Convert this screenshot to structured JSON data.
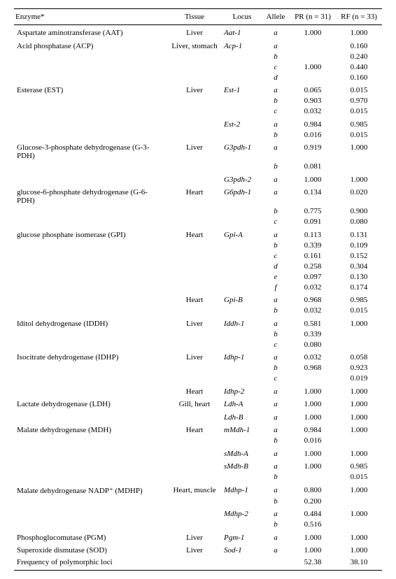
{
  "header": {
    "enzyme": "Enzyme*",
    "tissue": "Tissue",
    "locus": "Locus",
    "allele": "Allele",
    "pr": "PR (n = 31)",
    "rf": "RF (n = 33)"
  },
  "rows": [
    {
      "enzyme": "Aspartate aminotransferase (AAT)",
      "tissue": "Liver",
      "locus": "Aat-1",
      "allele": "a",
      "pr": "1.000",
      "rf": "1.000",
      "section": true
    },
    {
      "enzyme": "Acid phosphatase (ACP)",
      "tissue": "Liver, stomach",
      "locus": "Acp-1",
      "allele": "a",
      "pr": "",
      "rf": "0.160",
      "section": true
    },
    {
      "enzyme": "",
      "tissue": "",
      "locus": "",
      "allele": "b",
      "pr": "",
      "rf": "0.240"
    },
    {
      "enzyme": "",
      "tissue": "",
      "locus": "",
      "allele": "c",
      "pr": "1.000",
      "rf": "0.440"
    },
    {
      "enzyme": "",
      "tissue": "",
      "locus": "",
      "allele": "d",
      "pr": "",
      "rf": "0.160"
    },
    {
      "enzyme": "Esterase (EST)",
      "tissue": "Liver",
      "locus": "Est-1",
      "allele": "a",
      "pr": "0.065",
      "rf": "0.015",
      "section": true
    },
    {
      "enzyme": "",
      "tissue": "",
      "locus": "",
      "allele": "b",
      "pr": "0.903",
      "rf": "0.970"
    },
    {
      "enzyme": "",
      "tissue": "",
      "locus": "",
      "allele": "c",
      "pr": "0.032",
      "rf": "0.015"
    },
    {
      "enzyme": "",
      "tissue": "",
      "locus": "Est-2",
      "allele": "a",
      "pr": "0.984",
      "rf": "0.985",
      "section": true
    },
    {
      "enzyme": "",
      "tissue": "",
      "locus": "",
      "allele": "b",
      "pr": "0.016",
      "rf": "0.015"
    },
    {
      "enzyme": "Glucose-3-phosphate dehydrogenase (G-3-PDH)",
      "tissue": "Liver",
      "locus": "G3pdh-1",
      "allele": "a",
      "pr": "0.919",
      "rf": "1.000",
      "section": true
    },
    {
      "enzyme": "",
      "tissue": "",
      "locus": "",
      "allele": "b",
      "pr": "0.081",
      "rf": ""
    },
    {
      "enzyme": "",
      "tissue": "",
      "locus": "G3pdh-2",
      "allele": "a",
      "pr": "1.000",
      "rf": "1.000",
      "section": true
    },
    {
      "enzyme": "glucose-6-phosphate dehydrogenase (G-6-PDH)",
      "tissue": "Heart",
      "locus": "G6pdh-1",
      "allele": "a",
      "pr": "0.134",
      "rf": "0.020",
      "section": true
    },
    {
      "enzyme": "",
      "tissue": "",
      "locus": "",
      "allele": "b",
      "pr": "0.775",
      "rf": "0.900"
    },
    {
      "enzyme": "",
      "tissue": "",
      "locus": "",
      "allele": "c",
      "pr": "0.091",
      "rf": "0.080"
    },
    {
      "enzyme": "glucose phosphate isomerase (GPI)",
      "tissue": "Heart",
      "locus": "Gpi-A",
      "allele": "a",
      "pr": "0.113",
      "rf": "0.131",
      "section": true
    },
    {
      "enzyme": "",
      "tissue": "",
      "locus": "",
      "allele": "b",
      "pr": "0.339",
      "rf": "0.109"
    },
    {
      "enzyme": "",
      "tissue": "",
      "locus": "",
      "allele": "c",
      "pr": "0.161",
      "rf": "0.152"
    },
    {
      "enzyme": "",
      "tissue": "",
      "locus": "",
      "allele": "d",
      "pr": "0.258",
      "rf": "0.304"
    },
    {
      "enzyme": "",
      "tissue": "",
      "locus": "",
      "allele": "e",
      "pr": "0.097",
      "rf": "0.130"
    },
    {
      "enzyme": "",
      "tissue": "",
      "locus": "",
      "allele": "f",
      "pr": "0.032",
      "rf": "0.174"
    },
    {
      "enzyme": "",
      "tissue": "Heart",
      "locus": "Gpi-B",
      "allele": "a",
      "pr": "0.968",
      "rf": "0.985",
      "section": true
    },
    {
      "enzyme": "",
      "tissue": "",
      "locus": "",
      "allele": "b",
      "pr": "0.032",
      "rf": "0.015"
    },
    {
      "enzyme": "Iditol dehydrogenase (IDDH)",
      "tissue": "Liver",
      "locus": "Iddh-1",
      "allele": "a",
      "pr": "0.581",
      "rf": "1.000",
      "section": true
    },
    {
      "enzyme": "",
      "tissue": "",
      "locus": "",
      "allele": "b",
      "pr": "0.339",
      "rf": ""
    },
    {
      "enzyme": "",
      "tissue": "",
      "locus": "",
      "allele": "c",
      "pr": "0.080",
      "rf": ""
    },
    {
      "enzyme": "Isocitrate dehydrogenase (IDHP)",
      "tissue": "Liver",
      "locus": "Idhp-1",
      "allele": "a",
      "pr": "0.032",
      "rf": "0.058",
      "section": true
    },
    {
      "enzyme": "",
      "tissue": "",
      "locus": "",
      "allele": "b",
      "pr": "0.968",
      "rf": "0.923"
    },
    {
      "enzyme": "",
      "tissue": "",
      "locus": "",
      "allele": "c",
      "pr": "",
      "rf": "0.019"
    },
    {
      "enzyme": "",
      "tissue": "Heart",
      "locus": "Idhp-2",
      "allele": "a",
      "pr": "1.000",
      "rf": "1.000",
      "section": true
    },
    {
      "enzyme": "Lactate dehydrogenase (LDH)",
      "tissue": "Gill, heart",
      "locus": "Ldh-A",
      "allele": "a",
      "pr": "1.000",
      "rf": "1.000",
      "section": true
    },
    {
      "enzyme": "",
      "tissue": "",
      "locus": "Ldh-B",
      "allele": "a",
      "pr": "1.000",
      "rf": "1.000",
      "section": true
    },
    {
      "enzyme": "Malate dehydrogenase (MDH)",
      "tissue": "Heart",
      "locus": "mMdh-1",
      "allele": "a",
      "pr": "0.984",
      "rf": "1.000",
      "section": true
    },
    {
      "enzyme": "",
      "tissue": "",
      "locus": "",
      "allele": "b",
      "pr": "0.016",
      "rf": ""
    },
    {
      "enzyme": "",
      "tissue": "",
      "locus": "sMdh-A",
      "allele": "a",
      "pr": "1.000",
      "rf": "1.000",
      "section": true
    },
    {
      "enzyme": "",
      "tissue": "",
      "locus": "sMdh-B",
      "allele": "a",
      "pr": "1.000",
      "rf": "0.985",
      "section": true
    },
    {
      "enzyme": "",
      "tissue": "",
      "locus": "",
      "allele": "b",
      "pr": "",
      "rf": "0.015"
    },
    {
      "enzyme": "Malate dehydrogenase NADP⁺ (MDHP)",
      "tissue": "Heart, muscle",
      "locus": "Mdhp-1",
      "allele": "a",
      "pr": "0.800",
      "rf": "1.000",
      "section": true
    },
    {
      "enzyme": "",
      "tissue": "",
      "locus": "",
      "allele": "b",
      "pr": "0.200",
      "rf": ""
    },
    {
      "enzyme": "",
      "tissue": "",
      "locus": "Mdhp-2",
      "allele": "a",
      "pr": "0.484",
      "rf": "1.000",
      "section": true
    },
    {
      "enzyme": "",
      "tissue": "",
      "locus": "",
      "allele": "b",
      "pr": "0.516",
      "rf": ""
    },
    {
      "enzyme": "Phosphoglucomutase (PGM)",
      "tissue": "Liver",
      "locus": "Pgm-1",
      "allele": "a",
      "pr": "1.000",
      "rf": "1.000",
      "section": true
    },
    {
      "enzyme": "Superoxide dismutase (SOD)",
      "tissue": "Liver",
      "locus": "Sod-1",
      "allele": "a",
      "pr": "1.000",
      "rf": "1.000",
      "section": true
    }
  ],
  "summary": {
    "label": "Frequency of polymorphic loci",
    "pr": "52.38",
    "rf": "38.10"
  }
}
